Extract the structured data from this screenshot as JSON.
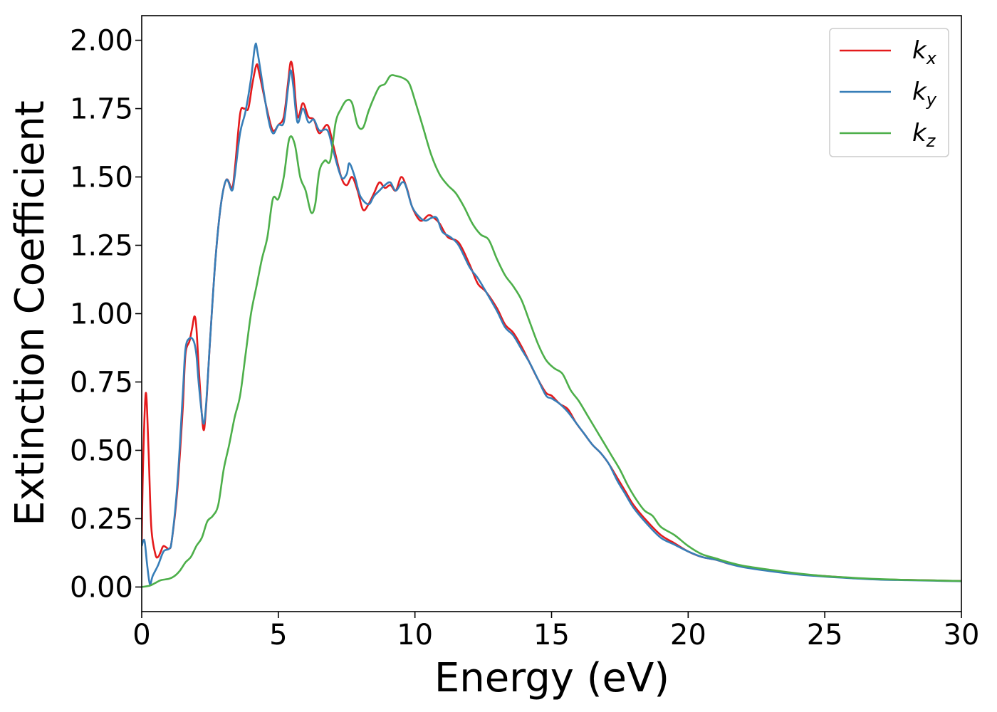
{
  "chart_data": {
    "type": "line",
    "xlabel": "Energy (eV)",
    "ylabel": "Extinction Coefficient",
    "xlim": [
      0,
      30
    ],
    "ylim": [
      -0.09,
      2.09
    ],
    "xticks": [
      0,
      5,
      10,
      15,
      20,
      25,
      30
    ],
    "xtick_labels": [
      "0",
      "5",
      "10",
      "15",
      "20",
      "25",
      "30"
    ],
    "yticks": [
      0,
      0.25,
      0.5,
      0.75,
      1.0,
      1.25,
      1.5,
      1.75,
      2.0
    ],
    "ytick_labels": [
      "0.00",
      "0.25",
      "0.50",
      "0.75",
      "1.00",
      "1.25",
      "1.50",
      "1.75",
      "2.00"
    ],
    "grid": false,
    "legend_position": "top-right",
    "series": [
      {
        "name": "k",
        "subscript": "x",
        "color": "#e41a1c",
        "points": [
          [
            0,
            0.17
          ],
          [
            0.05,
            0.45
          ],
          [
            0.15,
            0.71
          ],
          [
            0.25,
            0.5
          ],
          [
            0.35,
            0.22
          ],
          [
            0.5,
            0.12
          ],
          [
            0.6,
            0.11
          ],
          [
            0.7,
            0.13
          ],
          [
            0.8,
            0.15
          ],
          [
            1.0,
            0.14
          ],
          [
            1.1,
            0.17
          ],
          [
            1.3,
            0.35
          ],
          [
            1.5,
            0.65
          ],
          [
            1.6,
            0.85
          ],
          [
            1.75,
            0.9
          ],
          [
            1.85,
            0.95
          ],
          [
            1.93,
            0.99
          ],
          [
            2.0,
            0.95
          ],
          [
            2.1,
            0.78
          ],
          [
            2.25,
            0.58
          ],
          [
            2.35,
            0.65
          ],
          [
            2.5,
            0.9
          ],
          [
            2.7,
            1.2
          ],
          [
            2.9,
            1.4
          ],
          [
            3.1,
            1.49
          ],
          [
            3.3,
            1.46
          ],
          [
            3.4,
            1.52
          ],
          [
            3.6,
            1.73
          ],
          [
            3.75,
            1.75
          ],
          [
            3.9,
            1.75
          ],
          [
            4.05,
            1.84
          ],
          [
            4.2,
            1.91
          ],
          [
            4.3,
            1.88
          ],
          [
            4.6,
            1.74
          ],
          [
            4.8,
            1.67
          ],
          [
            5.0,
            1.69
          ],
          [
            5.2,
            1.72
          ],
          [
            5.35,
            1.84
          ],
          [
            5.45,
            1.92
          ],
          [
            5.55,
            1.88
          ],
          [
            5.7,
            1.72
          ],
          [
            5.9,
            1.77
          ],
          [
            6.1,
            1.72
          ],
          [
            6.3,
            1.71
          ],
          [
            6.5,
            1.66
          ],
          [
            6.8,
            1.69
          ],
          [
            7.0,
            1.62
          ],
          [
            7.3,
            1.5
          ],
          [
            7.5,
            1.47
          ],
          [
            7.7,
            1.5
          ],
          [
            7.9,
            1.45
          ],
          [
            8.1,
            1.38
          ],
          [
            8.3,
            1.4
          ],
          [
            8.5,
            1.44
          ],
          [
            8.7,
            1.48
          ],
          [
            8.9,
            1.46
          ],
          [
            9.1,
            1.47
          ],
          [
            9.3,
            1.45
          ],
          [
            9.5,
            1.5
          ],
          [
            9.7,
            1.46
          ],
          [
            9.9,
            1.39
          ],
          [
            10.2,
            1.34
          ],
          [
            10.5,
            1.36
          ],
          [
            10.7,
            1.35
          ],
          [
            10.9,
            1.33
          ],
          [
            11.2,
            1.28
          ],
          [
            11.6,
            1.26
          ],
          [
            12.0,
            1.18
          ],
          [
            12.3,
            1.11
          ],
          [
            12.6,
            1.08
          ],
          [
            13.0,
            1.02
          ],
          [
            13.3,
            0.96
          ],
          [
            13.6,
            0.93
          ],
          [
            13.9,
            0.88
          ],
          [
            14.2,
            0.82
          ],
          [
            14.5,
            0.76
          ],
          [
            14.8,
            0.71
          ],
          [
            15.0,
            0.7
          ],
          [
            15.3,
            0.67
          ],
          [
            15.6,
            0.65
          ],
          [
            15.9,
            0.6
          ],
          [
            16.2,
            0.56
          ],
          [
            16.5,
            0.52
          ],
          [
            16.8,
            0.49
          ],
          [
            17.1,
            0.45
          ],
          [
            17.4,
            0.4
          ],
          [
            17.7,
            0.35
          ],
          [
            18.0,
            0.3
          ],
          [
            18.5,
            0.24
          ],
          [
            19.0,
            0.19
          ],
          [
            19.5,
            0.16
          ],
          [
            20.0,
            0.13
          ],
          [
            20.5,
            0.11
          ],
          [
            21.0,
            0.1
          ],
          [
            21.5,
            0.085
          ],
          [
            22.0,
            0.075
          ],
          [
            23.0,
            0.06
          ],
          [
            24.0,
            0.048
          ],
          [
            25.0,
            0.04
          ],
          [
            26.0,
            0.033
          ],
          [
            27.0,
            0.028
          ],
          [
            28.0,
            0.026
          ],
          [
            29.0,
            0.024
          ],
          [
            30.0,
            0.022
          ]
        ]
      },
      {
        "name": "k",
        "subscript": "y",
        "color": "#377eb8",
        "points": [
          [
            0,
            0.15
          ],
          [
            0.1,
            0.17
          ],
          [
            0.2,
            0.08
          ],
          [
            0.3,
            0.01
          ],
          [
            0.4,
            0.04
          ],
          [
            0.6,
            0.08
          ],
          [
            0.8,
            0.13
          ],
          [
            1.0,
            0.14
          ],
          [
            1.1,
            0.17
          ],
          [
            1.3,
            0.37
          ],
          [
            1.5,
            0.7
          ],
          [
            1.6,
            0.87
          ],
          [
            1.75,
            0.91
          ],
          [
            1.9,
            0.9
          ],
          [
            2.0,
            0.85
          ],
          [
            2.1,
            0.73
          ],
          [
            2.25,
            0.6
          ],
          [
            2.35,
            0.66
          ],
          [
            2.5,
            0.9
          ],
          [
            2.7,
            1.2
          ],
          [
            2.9,
            1.4
          ],
          [
            3.1,
            1.49
          ],
          [
            3.3,
            1.45
          ],
          [
            3.4,
            1.5
          ],
          [
            3.6,
            1.66
          ],
          [
            3.8,
            1.74
          ],
          [
            4.0,
            1.86
          ],
          [
            4.15,
            1.98
          ],
          [
            4.25,
            1.95
          ],
          [
            4.6,
            1.73
          ],
          [
            4.8,
            1.66
          ],
          [
            5.0,
            1.69
          ],
          [
            5.2,
            1.7
          ],
          [
            5.35,
            1.82
          ],
          [
            5.45,
            1.89
          ],
          [
            5.55,
            1.83
          ],
          [
            5.7,
            1.7
          ],
          [
            5.9,
            1.75
          ],
          [
            6.1,
            1.7
          ],
          [
            6.3,
            1.71
          ],
          [
            6.5,
            1.67
          ],
          [
            6.8,
            1.67
          ],
          [
            7.0,
            1.6
          ],
          [
            7.3,
            1.5
          ],
          [
            7.5,
            1.51
          ],
          [
            7.6,
            1.55
          ],
          [
            7.8,
            1.5
          ],
          [
            8.0,
            1.43
          ],
          [
            8.3,
            1.4
          ],
          [
            8.5,
            1.43
          ],
          [
            8.7,
            1.45
          ],
          [
            8.9,
            1.47
          ],
          [
            9.1,
            1.48
          ],
          [
            9.3,
            1.45
          ],
          [
            9.6,
            1.48
          ],
          [
            9.9,
            1.39
          ],
          [
            10.2,
            1.35
          ],
          [
            10.4,
            1.34
          ],
          [
            10.6,
            1.35
          ],
          [
            10.8,
            1.35
          ],
          [
            11.0,
            1.3
          ],
          [
            11.3,
            1.28
          ],
          [
            11.6,
            1.25
          ],
          [
            12.0,
            1.17
          ],
          [
            12.3,
            1.13
          ],
          [
            12.6,
            1.08
          ],
          [
            13.0,
            1.01
          ],
          [
            13.3,
            0.95
          ],
          [
            13.6,
            0.92
          ],
          [
            13.9,
            0.87
          ],
          [
            14.2,
            0.82
          ],
          [
            14.5,
            0.76
          ],
          [
            14.8,
            0.7
          ],
          [
            15.0,
            0.69
          ],
          [
            15.3,
            0.67
          ],
          [
            15.6,
            0.64
          ],
          [
            15.9,
            0.6
          ],
          [
            16.2,
            0.56
          ],
          [
            16.5,
            0.52
          ],
          [
            16.8,
            0.49
          ],
          [
            17.1,
            0.45
          ],
          [
            17.4,
            0.39
          ],
          [
            17.7,
            0.34
          ],
          [
            18.0,
            0.29
          ],
          [
            18.5,
            0.23
          ],
          [
            19.0,
            0.18
          ],
          [
            19.5,
            0.155
          ],
          [
            20.0,
            0.13
          ],
          [
            20.5,
            0.11
          ],
          [
            21.0,
            0.1
          ],
          [
            21.5,
            0.085
          ],
          [
            22.0,
            0.073
          ],
          [
            23.0,
            0.058
          ],
          [
            24.0,
            0.046
          ],
          [
            25.0,
            0.038
          ],
          [
            26.0,
            0.032
          ],
          [
            27.0,
            0.027
          ],
          [
            28.0,
            0.025
          ],
          [
            29.0,
            0.023
          ],
          [
            30.0,
            0.021
          ]
        ]
      },
      {
        "name": "k",
        "subscript": "z",
        "color": "#4daf4a",
        "points": [
          [
            0,
            0.0
          ],
          [
            0.3,
            0.005
          ],
          [
            0.5,
            0.015
          ],
          [
            0.7,
            0.025
          ],
          [
            1.0,
            0.03
          ],
          [
            1.2,
            0.04
          ],
          [
            1.4,
            0.06
          ],
          [
            1.6,
            0.09
          ],
          [
            1.8,
            0.11
          ],
          [
            2.0,
            0.15
          ],
          [
            2.2,
            0.18
          ],
          [
            2.4,
            0.24
          ],
          [
            2.6,
            0.26
          ],
          [
            2.8,
            0.3
          ],
          [
            3.0,
            0.43
          ],
          [
            3.2,
            0.52
          ],
          [
            3.4,
            0.62
          ],
          [
            3.6,
            0.7
          ],
          [
            3.8,
            0.85
          ],
          [
            4.0,
            1.0
          ],
          [
            4.2,
            1.1
          ],
          [
            4.4,
            1.2
          ],
          [
            4.6,
            1.28
          ],
          [
            4.8,
            1.42
          ],
          [
            5.0,
            1.42
          ],
          [
            5.2,
            1.5
          ],
          [
            5.4,
            1.64
          ],
          [
            5.6,
            1.62
          ],
          [
            5.8,
            1.5
          ],
          [
            6.0,
            1.45
          ],
          [
            6.2,
            1.37
          ],
          [
            6.35,
            1.4
          ],
          [
            6.5,
            1.52
          ],
          [
            6.7,
            1.56
          ],
          [
            6.9,
            1.56
          ],
          [
            7.1,
            1.7
          ],
          [
            7.3,
            1.75
          ],
          [
            7.5,
            1.78
          ],
          [
            7.7,
            1.77
          ],
          [
            7.9,
            1.69
          ],
          [
            8.1,
            1.68
          ],
          [
            8.3,
            1.74
          ],
          [
            8.5,
            1.79
          ],
          [
            8.7,
            1.83
          ],
          [
            8.9,
            1.84
          ],
          [
            9.1,
            1.87
          ],
          [
            9.3,
            1.87
          ],
          [
            9.6,
            1.86
          ],
          [
            9.8,
            1.84
          ],
          [
            10.0,
            1.78
          ],
          [
            10.3,
            1.68
          ],
          [
            10.6,
            1.58
          ],
          [
            10.9,
            1.51
          ],
          [
            11.2,
            1.47
          ],
          [
            11.5,
            1.44
          ],
          [
            11.8,
            1.39
          ],
          [
            12.1,
            1.33
          ],
          [
            12.4,
            1.29
          ],
          [
            12.7,
            1.27
          ],
          [
            13.0,
            1.2
          ],
          [
            13.3,
            1.14
          ],
          [
            13.6,
            1.1
          ],
          [
            13.9,
            1.05
          ],
          [
            14.2,
            0.97
          ],
          [
            14.5,
            0.89
          ],
          [
            14.8,
            0.83
          ],
          [
            15.1,
            0.8
          ],
          [
            15.4,
            0.78
          ],
          [
            15.7,
            0.72
          ],
          [
            16.0,
            0.68
          ],
          [
            16.3,
            0.63
          ],
          [
            16.6,
            0.58
          ],
          [
            16.9,
            0.53
          ],
          [
            17.2,
            0.48
          ],
          [
            17.5,
            0.43
          ],
          [
            17.8,
            0.37
          ],
          [
            18.1,
            0.32
          ],
          [
            18.4,
            0.28
          ],
          [
            18.7,
            0.26
          ],
          [
            19.0,
            0.22
          ],
          [
            19.5,
            0.19
          ],
          [
            20.0,
            0.15
          ],
          [
            20.5,
            0.12
          ],
          [
            21.0,
            0.105
          ],
          [
            21.5,
            0.09
          ],
          [
            22.0,
            0.078
          ],
          [
            23.0,
            0.063
          ],
          [
            24.0,
            0.05
          ],
          [
            25.0,
            0.04
          ],
          [
            26.0,
            0.034
          ],
          [
            27.0,
            0.029
          ],
          [
            28.0,
            0.026
          ],
          [
            29.0,
            0.024
          ],
          [
            30.0,
            0.022
          ]
        ]
      }
    ]
  }
}
